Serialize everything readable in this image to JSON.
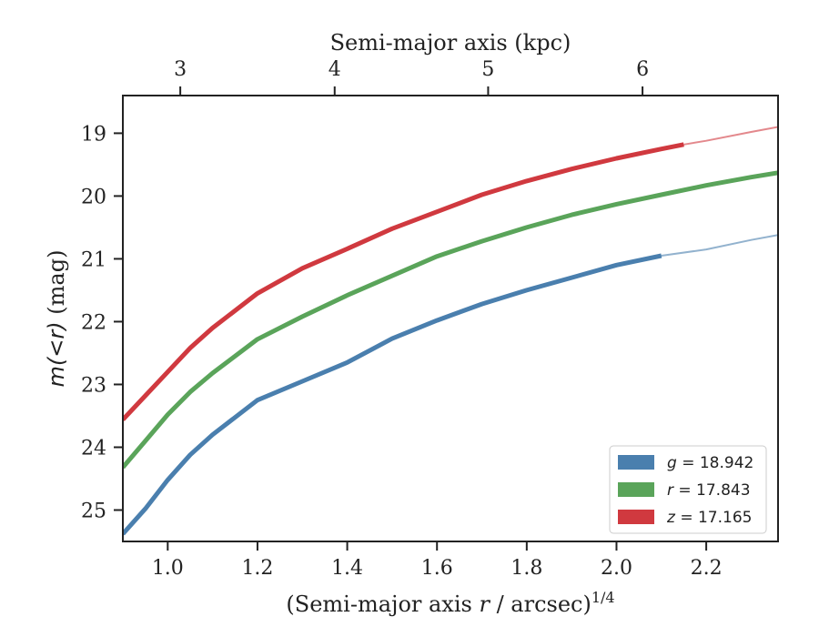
{
  "chart_data": {
    "type": "line",
    "title": "",
    "xlabel": "(Semi-major axis r / arcsec)",
    "xlabel_prefix": "(Semi-major axis ",
    "xlabel_var": "r",
    "xlabel_suffix": " / arcsec)",
    "xlabel_power": "1/4",
    "ylabel": "m(< r) (mag)",
    "ylabel_math": "m(<r)",
    "ylabel_unit": " (mag)",
    "top_xlabel": "Semi-major axis (kpc)",
    "xlim": [
      0.9,
      2.36
    ],
    "ylim": [
      25.5,
      18.4
    ],
    "y_inverted": true,
    "xticks": [
      1.0,
      1.2,
      1.4,
      1.6,
      1.8,
      2.0,
      2.2
    ],
    "xtick_labels": [
      "1.0",
      "1.2",
      "1.4",
      "1.6",
      "1.8",
      "2.0",
      "2.2"
    ],
    "yticks": [
      19,
      20,
      21,
      22,
      23,
      24,
      25
    ],
    "ytick_labels": [
      "19",
      "20",
      "21",
      "22",
      "23",
      "24",
      "25"
    ],
    "top_xticks_at_bottom_x": [
      1.028,
      1.372,
      1.714,
      2.058
    ],
    "top_xtick_labels": [
      "3",
      "4",
      "5",
      "6"
    ],
    "grid": false,
    "legend_position": "bottom-right",
    "series": [
      {
        "name": "g = 18.942",
        "band": "g",
        "value": "18.942",
        "color": "#4a7fae",
        "x": [
          0.9,
          0.95,
          1.0,
          1.05,
          1.1,
          1.2,
          1.3,
          1.4,
          1.5,
          1.6,
          1.7,
          1.8,
          1.9,
          2.0,
          2.1,
          2.2,
          2.3,
          2.36
        ],
        "y": [
          25.38,
          24.98,
          24.52,
          24.12,
          23.8,
          23.25,
          22.95,
          22.65,
          22.27,
          21.98,
          21.72,
          21.5,
          21.3,
          21.1,
          20.95,
          20.85,
          20.7,
          20.62
        ],
        "extrapolated_from_x": 2.1
      },
      {
        "name": "r = 17.843",
        "band": "r",
        "value": "17.843",
        "color": "#5aa45a",
        "x": [
          0.9,
          0.95,
          1.0,
          1.05,
          1.1,
          1.2,
          1.3,
          1.4,
          1.5,
          1.6,
          1.7,
          1.8,
          1.9,
          2.0,
          2.1,
          2.2,
          2.3,
          2.36
        ],
        "y": [
          24.32,
          23.9,
          23.48,
          23.12,
          22.82,
          22.28,
          21.92,
          21.58,
          21.27,
          20.96,
          20.72,
          20.5,
          20.3,
          20.13,
          19.98,
          19.83,
          19.7,
          19.63
        ],
        "extrapolated_from_x": 2.36
      },
      {
        "name": "z = 17.165",
        "band": "z",
        "value": "17.165",
        "color": "#d0393f",
        "x": [
          0.9,
          0.95,
          1.0,
          1.05,
          1.1,
          1.2,
          1.3,
          1.4,
          1.5,
          1.6,
          1.7,
          1.8,
          1.9,
          2.0,
          2.1,
          2.15,
          2.2,
          2.3,
          2.36
        ],
        "y": [
          23.56,
          23.18,
          22.8,
          22.42,
          22.1,
          21.55,
          21.15,
          20.84,
          20.52,
          20.25,
          19.98,
          19.76,
          19.57,
          19.4,
          19.25,
          19.18,
          19.12,
          18.98,
          18.9
        ],
        "extrapolated_from_x": 2.15
      }
    ]
  }
}
